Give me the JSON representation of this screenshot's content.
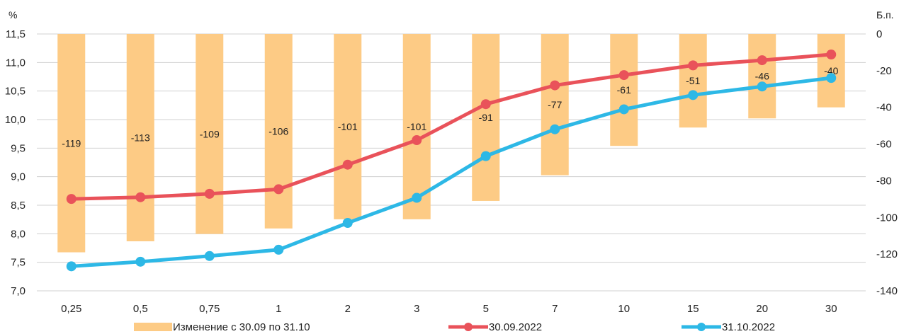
{
  "chart_data": {
    "type": "bar+line",
    "categories": [
      "0,25",
      "0,5",
      "0,75",
      "1",
      "2",
      "3",
      "5",
      "7",
      "10",
      "15",
      "20",
      "30"
    ],
    "left_axis": {
      "unit": "%",
      "ylim": [
        7.0,
        11.5
      ],
      "ticks": [
        "7,0",
        "7,5",
        "8,0",
        "8,5",
        "9,0",
        "9,5",
        "10,0",
        "10,5",
        "11,0",
        "11,5"
      ],
      "tick_values": [
        7.0,
        7.5,
        8.0,
        8.5,
        9.0,
        9.5,
        10.0,
        10.5,
        11.0,
        11.5
      ]
    },
    "right_axis": {
      "unit": "Б.п.",
      "ylim": [
        -140,
        0
      ],
      "ticks": [
        "-140",
        "-120",
        "-100",
        "-80",
        "-60",
        "-40",
        "-20",
        "0"
      ],
      "tick_values": [
        -140,
        -120,
        -100,
        -80,
        -60,
        -40,
        -20,
        0
      ]
    },
    "bars": {
      "name": "Изменение с 30.09 по 31.10",
      "color": "#fdcb85",
      "values": [
        -119,
        -113,
        -109,
        -106,
        -101,
        -101,
        -91,
        -77,
        -61,
        -51,
        -46,
        -40
      ],
      "labels": [
        "-119",
        "-113",
        "-109",
        "-106",
        "-101",
        "-101",
        "-91",
        "-77",
        "-61",
        "-51",
        "-46",
        "-40"
      ]
    },
    "series": [
      {
        "name": "30.09.2022",
        "color": "#e9525a",
        "values": [
          8.61,
          8.64,
          8.7,
          8.78,
          9.21,
          9.64,
          10.27,
          10.6,
          10.78,
          10.95,
          11.04,
          11.14
        ]
      },
      {
        "name": "31.10.2022",
        "color": "#2db8e6",
        "values": [
          7.43,
          7.51,
          7.61,
          7.72,
          8.19,
          8.63,
          9.36,
          9.83,
          10.18,
          10.43,
          10.58,
          10.73
        ]
      }
    ],
    "grid": true,
    "legend": "bottom"
  }
}
